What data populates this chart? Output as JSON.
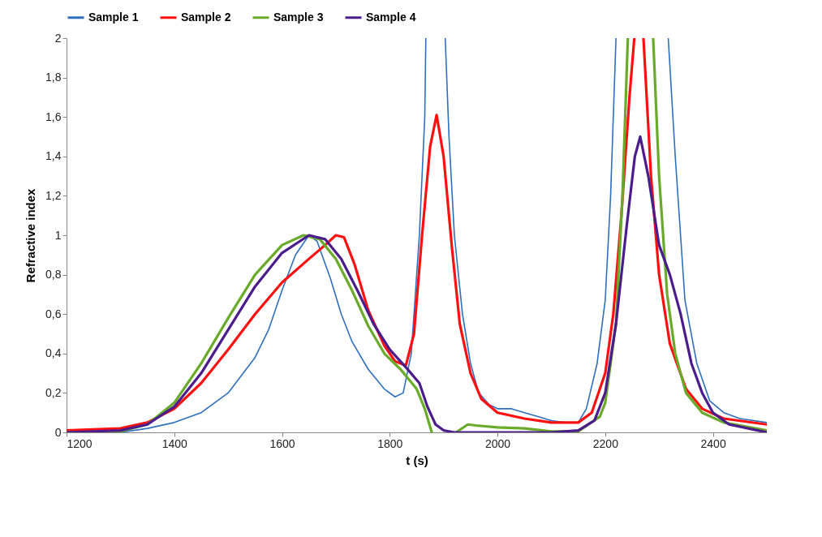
{
  "chart_data": {
    "type": "line",
    "xlabel": "t (s)",
    "ylabel": "Refractive index",
    "legend": "top",
    "grid": false,
    "marker": "none",
    "line_style": "solid",
    "xlim": [
      1200,
      2500
    ],
    "xticks": [
      1200,
      1400,
      1600,
      1800,
      2000,
      2200,
      2400
    ],
    "ylim": [
      0,
      2
    ],
    "yticks": [
      0,
      {
        "value": 0.2,
        "label": "0,2"
      },
      {
        "value": 0.4,
        "label": "0,4"
      },
      {
        "value": 0.6,
        "label": "0,6"
      },
      {
        "value": 0.8,
        "label": "0,8"
      },
      1,
      {
        "value": 1.2,
        "label": "1,2"
      },
      {
        "value": 1.4,
        "label": "1,4"
      },
      {
        "value": 1.6,
        "label": "1,6"
      },
      {
        "value": 1.8,
        "label": "1,8"
      },
      2
    ],
    "series": [
      {
        "name": "Sample 1",
        "color": "#2f6fbf",
        "x": [
          1200,
          1300,
          1350,
          1400,
          1450,
          1500,
          1550,
          1575,
          1600,
          1625,
          1650,
          1665,
          1690,
          1710,
          1730,
          1760,
          1790,
          1810,
          1825,
          1840,
          1855,
          1865,
          1867,
          1885,
          1903,
          1910,
          1920,
          1935,
          1950,
          1965,
          1985,
          2000,
          2025,
          2050,
          2075,
          2100,
          2125,
          2150,
          2165,
          2185,
          2200,
          2210,
          2220,
          2270,
          2317,
          2330,
          2348,
          2370,
          2394,
          2420,
          2450,
          2500
        ],
        "values": [
          0,
          0,
          0.02,
          0.05,
          0.1,
          0.2,
          0.38,
          0.52,
          0.72,
          0.9,
          1,
          0.97,
          0.78,
          0.6,
          0.46,
          0.32,
          0.22,
          0.18,
          0.2,
          0.4,
          1,
          1.6,
          2,
          null,
          2,
          1.5,
          1,
          0.6,
          0.35,
          0.2,
          0.14,
          0.12,
          0.12,
          0.1,
          0.08,
          0.06,
          0.05,
          0.05,
          0.12,
          0.35,
          0.67,
          1.2,
          2,
          null,
          2,
          1.4,
          0.67,
          0.35,
          0.16,
          0.1,
          0.07,
          0.05
        ]
      },
      {
        "name": "Sample 2",
        "color": "#ff1010",
        "x": [
          1200,
          1300,
          1350,
          1400,
          1450,
          1500,
          1550,
          1600,
          1650,
          1680,
          1700,
          1715,
          1735,
          1760,
          1790,
          1810,
          1830,
          1845,
          1860,
          1875,
          1887,
          1900,
          1915,
          1930,
          1950,
          1970,
          2000,
          2050,
          2100,
          2150,
          2175,
          2200,
          2215,
          2230,
          2245,
          2254,
          2262,
          2271,
          2285,
          2300,
          2320,
          2350,
          2380,
          2420,
          2500
        ],
        "values": [
          0.01,
          0.02,
          0.05,
          0.12,
          0.25,
          0.42,
          0.6,
          0.76,
          0.88,
          0.95,
          1,
          0.99,
          0.85,
          0.62,
          0.44,
          0.36,
          0.34,
          0.5,
          1,
          1.45,
          1.61,
          1.4,
          0.95,
          0.55,
          0.3,
          0.17,
          0.1,
          0.07,
          0.05,
          0.05,
          0.1,
          0.3,
          0.6,
          1.1,
          1.7,
          2,
          null,
          2,
          1.3,
          0.8,
          0.45,
          0.22,
          0.12,
          0.07,
          0.04
        ]
      },
      {
        "name": "Sample 3",
        "color": "#6aaa2a",
        "x": [
          1200,
          1300,
          1350,
          1400,
          1450,
          1500,
          1550,
          1600,
          1640,
          1670,
          1700,
          1730,
          1760,
          1790,
          1820,
          1850,
          1865,
          1878,
          1900,
          1923,
          1945,
          1960,
          2000,
          2050,
          2100,
          2150,
          2190,
          2200,
          2220,
          2232,
          2242,
          2265,
          2289,
          2300,
          2315,
          2330,
          2350,
          2380,
          2420,
          2500
        ],
        "values": [
          0,
          0.005,
          0.04,
          0.15,
          0.35,
          0.58,
          0.8,
          0.95,
          1,
          0.98,
          0.88,
          0.72,
          0.54,
          0.4,
          0.32,
          0.22,
          0.12,
          0,
          null,
          0,
          0.04,
          0.035,
          0.025,
          0.02,
          0.005,
          0.005,
          0.08,
          0.15,
          0.55,
          1.2,
          2,
          null,
          2,
          1.3,
          0.7,
          0.4,
          0.2,
          0.1,
          0.05,
          0.01
        ]
      },
      {
        "name": "Sample 4",
        "color": "#4b1c8c",
        "x": [
          1200,
          1300,
          1350,
          1400,
          1450,
          1500,
          1550,
          1600,
          1650,
          1680,
          1710,
          1740,
          1770,
          1800,
          1830,
          1855,
          1870,
          1885,
          1900,
          1920,
          2100,
          2150,
          2180,
          2200,
          2220,
          2240,
          2255,
          2265,
          2280,
          2300,
          2320,
          2340,
          2360,
          2380,
          2400,
          2430,
          2500
        ],
        "values": [
          0,
          0.01,
          0.04,
          0.13,
          0.3,
          0.52,
          0.74,
          0.91,
          1,
          0.98,
          0.88,
          0.72,
          0.55,
          0.42,
          0.33,
          0.25,
          0.13,
          0.04,
          0.01,
          0,
          0,
          0.01,
          0.06,
          0.2,
          0.55,
          1.05,
          1.4,
          1.5,
          1.3,
          0.95,
          0.8,
          0.6,
          0.35,
          0.2,
          0.1,
          0.04,
          0
        ]
      }
    ]
  }
}
